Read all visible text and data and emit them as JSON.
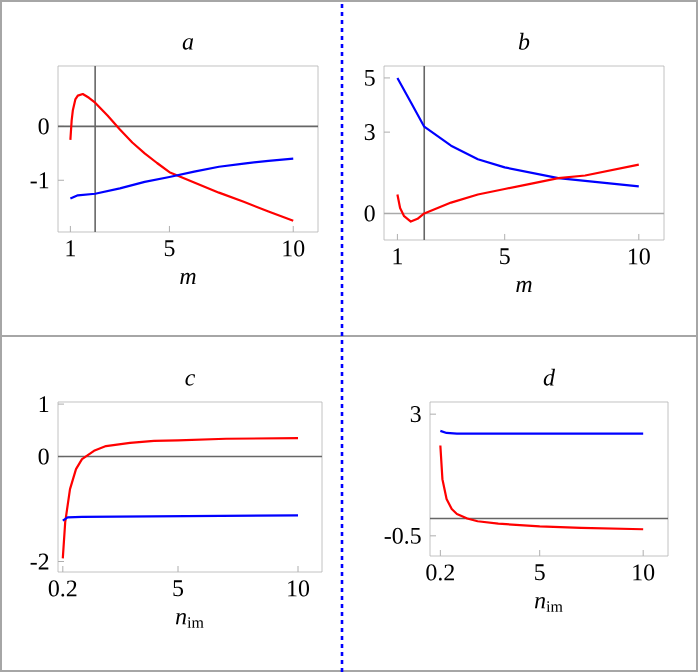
{
  "chart_data": [
    {
      "type": "line",
      "title": "a",
      "xlabel": "*m*",
      "xlim": [
        0.5,
        11
      ],
      "xticks": [
        1,
        5,
        10
      ],
      "ylim": [
        -1.96,
        1.12
      ],
      "yticks": [
        -1,
        0
      ],
      "ref_lines": [
        {
          "axis": "x",
          "value": 2,
          "color": "#666666"
        },
        {
          "axis": "y",
          "value": 0,
          "color": "#666666"
        }
      ],
      "series": [
        {
          "color": "#ff0000",
          "x": [
            1,
            1.05,
            1.1,
            1.2,
            1.3,
            1.5,
            1.75,
            2,
            2.5,
            3,
            3.5,
            4,
            4.5,
            5,
            6,
            7,
            8,
            9,
            10
          ],
          "values": [
            -0.25,
            0.1,
            0.3,
            0.5,
            0.57,
            0.6,
            0.53,
            0.44,
            0.2,
            -0.06,
            -0.3,
            -0.5,
            -0.68,
            -0.85,
            -1.04,
            -1.23,
            -1.4,
            -1.58,
            -1.75
          ]
        },
        {
          "color": "#0000ff",
          "x": [
            1,
            1.3,
            2,
            3,
            4,
            5,
            6,
            7,
            8,
            9,
            10
          ],
          "values": [
            -1.34,
            -1.28,
            -1.25,
            -1.15,
            -1.03,
            -0.94,
            -0.84,
            -0.75,
            -0.69,
            -0.64,
            -0.6
          ]
        }
      ]
    },
    {
      "type": "line",
      "title": "b",
      "xlabel": "*m*",
      "xlim": [
        0.5,
        10.94
      ],
      "xticks": [
        1,
        5,
        10
      ],
      "ylim": [
        -0.98,
        5.44
      ],
      "yticks": [
        0,
        3,
        5
      ],
      "ref_lines": [
        {
          "axis": "x",
          "value": 2,
          "color": "#666666"
        },
        {
          "axis": "y",
          "value": 0,
          "color": "#aaaaaa"
        }
      ],
      "series": [
        {
          "color": "#0000ff",
          "x": [
            1,
            1.5,
            2,
            3,
            4,
            5,
            6,
            7,
            8,
            9,
            10
          ],
          "values": [
            5.0,
            4.1,
            3.2,
            2.5,
            2.0,
            1.7,
            1.5,
            1.3,
            1.2,
            1.1,
            1.0
          ]
        },
        {
          "color": "#ff0000",
          "x": [
            1,
            1.1,
            1.25,
            1.5,
            1.75,
            2,
            2.5,
            3,
            4,
            5,
            6,
            7,
            8,
            9,
            10
          ],
          "values": [
            0.7,
            0.2,
            -0.1,
            -0.3,
            -0.2,
            0.0,
            0.2,
            0.4,
            0.7,
            0.9,
            1.1,
            1.3,
            1.4,
            1.6,
            1.8
          ]
        }
      ]
    },
    {
      "type": "line",
      "title": "c",
      "xlabel": "*n*$_{im}$",
      "xlim": [
        0,
        11
      ],
      "xticks": [
        0.2,
        5,
        10
      ],
      "ylim": [
        -2.2,
        1.04
      ],
      "yticks": [
        -2,
        0,
        1
      ],
      "ref_lines": [
        {
          "axis": "y",
          "value": 0,
          "color": "#666666"
        }
      ],
      "series": [
        {
          "color": "#ff0000",
          "x": [
            0.2,
            0.3,
            0.5,
            0.75,
            1,
            1.5,
            2,
            3,
            4,
            5,
            7,
            10
          ],
          "values": [
            -1.94,
            -1.25,
            -0.62,
            -0.24,
            -0.05,
            0.11,
            0.2,
            0.26,
            0.3,
            0.31,
            0.34,
            0.35
          ]
        },
        {
          "color": "#0000ff",
          "x": [
            0.2,
            0.4,
            1,
            10
          ],
          "values": [
            -1.22,
            -1.16,
            -1.15,
            -1.12
          ]
        }
      ]
    },
    {
      "type": "line",
      "title": "d",
      "xlabel": "*n*$_{im}$",
      "xlim": [
        -0.3,
        11.2
      ],
      "xticks": [
        0.2,
        5,
        10
      ],
      "ylim": [
        -1.08,
        3.35
      ],
      "yticks": [
        -0.5,
        3
      ],
      "ref_lines": [
        {
          "axis": "y",
          "value": 0,
          "color": "#666666"
        }
      ],
      "series": [
        {
          "color": "#0000ff",
          "x": [
            0.2,
            0.5,
            1,
            10
          ],
          "values": [
            2.52,
            2.46,
            2.44,
            2.44
          ]
        },
        {
          "color": "#ff0000",
          "x": [
            0.2,
            0.3,
            0.5,
            0.75,
            1,
            1.5,
            2,
            3,
            5,
            7,
            10
          ],
          "values": [
            2.1,
            1.13,
            0.56,
            0.27,
            0.13,
            0,
            -0.08,
            -0.15,
            -0.23,
            -0.27,
            -0.31
          ]
        }
      ]
    }
  ]
}
